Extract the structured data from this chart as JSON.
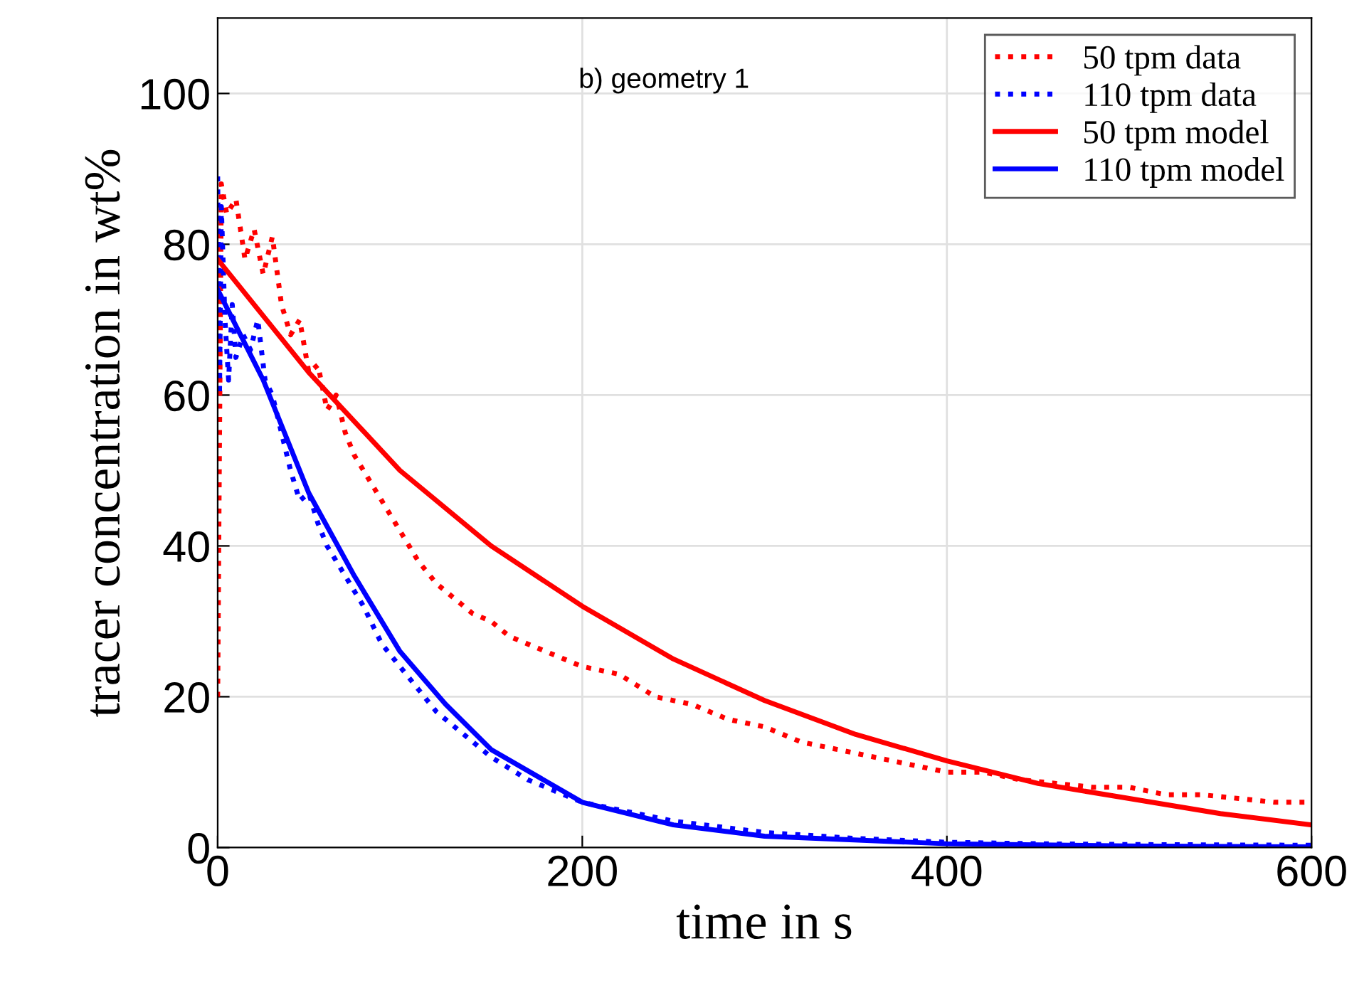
{
  "chart_data": {
    "type": "line",
    "xlabel": "time in s",
    "ylabel": "tracer concentration in wt%",
    "xlim": [
      0,
      600
    ],
    "xticks": [
      0,
      200,
      400,
      600
    ],
    "ylim": [
      0,
      110
    ],
    "yticks": [
      0,
      20,
      40,
      60,
      80,
      100
    ],
    "grid": true,
    "legend": "top right",
    "annotations": [
      "b) geometry 1"
    ],
    "series": [
      {
        "name": "50 tpm data",
        "color": "#ff0000",
        "line_style": "dotted",
        "x": [
          0,
          2,
          5,
          10,
          15,
          20,
          25,
          30,
          35,
          40,
          45,
          50,
          55,
          60,
          65,
          70,
          75,
          80,
          90,
          100,
          110,
          120,
          130,
          140,
          150,
          160,
          170,
          180,
          190,
          200,
          220,
          240,
          260,
          280,
          300,
          320,
          340,
          360,
          380,
          400,
          420,
          440,
          460,
          480,
          500,
          520,
          540,
          560,
          580,
          600
        ],
        "values": [
          20,
          88,
          84,
          86,
          78,
          82,
          76,
          81,
          72,
          68,
          70,
          63,
          64,
          58,
          60,
          55,
          52,
          50,
          46,
          42,
          38,
          35,
          33,
          31,
          30,
          28,
          27,
          26,
          25,
          24,
          23,
          20,
          19,
          17,
          16,
          14,
          13,
          12,
          11,
          10,
          10,
          9,
          8.5,
          8,
          8,
          7,
          7,
          6.5,
          6,
          6
        ]
      },
      {
        "name": "110 tpm data",
        "color": "#0000ff",
        "line_style": "dotted",
        "x": [
          0,
          1,
          2,
          4,
          6,
          8,
          10,
          14,
          18,
          22,
          26,
          30,
          35,
          40,
          45,
          50,
          55,
          60,
          65,
          70,
          80,
          90,
          100,
          110,
          120,
          130,
          140,
          150,
          170,
          200,
          220,
          250,
          300,
          350,
          400,
          450,
          500,
          600
        ],
        "values": [
          89,
          60,
          85,
          70,
          62,
          72,
          65,
          68,
          66,
          70,
          62,
          60,
          55,
          50,
          46,
          47,
          43,
          40,
          38,
          36,
          32,
          27,
          24,
          21,
          18,
          16,
          14,
          12,
          9,
          6,
          5,
          3.5,
          2,
          1.2,
          0.7,
          0.5,
          0.4,
          0.3
        ]
      },
      {
        "name": "50 tpm model",
        "color": "#ff0000",
        "line_style": "solid",
        "x": [
          0,
          50,
          100,
          150,
          200,
          250,
          300,
          350,
          400,
          450,
          500,
          550,
          600
        ],
        "values": [
          78,
          63,
          50,
          40,
          32,
          25,
          19.5,
          15,
          11.5,
          8.5,
          6.5,
          4.5,
          3
        ]
      },
      {
        "name": "110 tpm model",
        "color": "#0000ff",
        "line_style": "solid",
        "x": [
          0,
          25,
          50,
          75,
          100,
          125,
          150,
          200,
          250,
          300,
          400,
          500,
          600
        ],
        "values": [
          74,
          62,
          47,
          36,
          26,
          19,
          13,
          6,
          3,
          1.5,
          0.5,
          0.2,
          0.1
        ]
      }
    ]
  }
}
